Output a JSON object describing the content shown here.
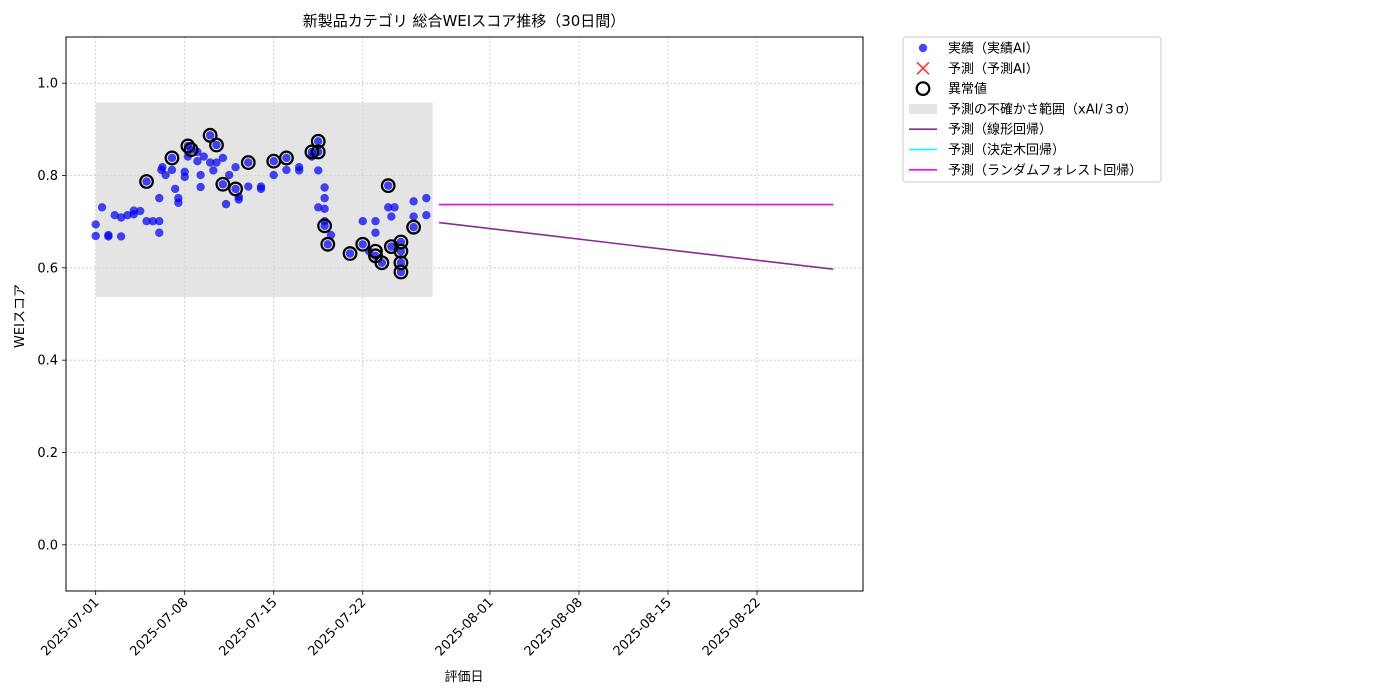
{
  "chart_data": {
    "type": "scatter",
    "title": "新製品カテゴリ 総合WEIスコア推移（30日間）",
    "xlabel": "評価日",
    "ylabel": "WEIスコア",
    "xlim": [
      "2025-06-28 16:00",
      "2025-08-30 08:00"
    ],
    "ylim": [
      -0.1,
      1.1
    ],
    "yticks": [
      0.0,
      0.2,
      0.4,
      0.6,
      0.8,
      1.0
    ],
    "xticks": [
      "2025-07-01",
      "2025-07-08",
      "2025-07-15",
      "2025-07-22",
      "2025-08-01",
      "2025-08-08",
      "2025-08-15",
      "2025-08-22"
    ],
    "grid": true,
    "legend_position": "outside-upper-right",
    "colors": {
      "actual": "#0000ee",
      "predicted": "#ff3333",
      "anomaly": "#000000",
      "uncertainty": "#d9d9d9",
      "linear": "#8b2a96",
      "tree": "#00ffff",
      "forest": "#ff00ff"
    },
    "series": [
      {
        "name": "実績（実績AI）",
        "kind": "scatter",
        "points": [
          [
            "2025-07-01 00:00",
            0.669
          ],
          [
            "2025-07-01 00:00",
            0.694
          ],
          [
            "2025-07-01 12:00",
            0.731
          ],
          [
            "2025-07-02 00:00",
            0.671
          ],
          [
            "2025-07-02 00:00",
            0.668
          ],
          [
            "2025-07-02 12:00",
            0.714
          ],
          [
            "2025-07-03 00:00",
            0.709
          ],
          [
            "2025-07-03 00:00",
            0.668
          ],
          [
            "2025-07-03 12:00",
            0.714
          ],
          [
            "2025-07-04 00:00",
            0.724
          ],
          [
            "2025-07-04 00:00",
            0.716
          ],
          [
            "2025-07-04 12:00",
            0.723
          ],
          [
            "2025-07-05 00:00",
            0.701
          ],
          [
            "2025-07-05 00:00",
            0.787
          ],
          [
            "2025-07-05 12:00",
            0.701
          ],
          [
            "2025-07-06 00:00",
            0.701
          ],
          [
            "2025-07-06 00:00",
            0.676
          ],
          [
            "2025-07-06 12:00",
            0.801
          ],
          [
            "2025-07-06 04:00",
            0.812
          ],
          [
            "2025-07-06 06:00",
            0.818
          ],
          [
            "2025-07-06 00:00",
            0.751
          ],
          [
            "2025-07-07 00:00",
            0.812
          ],
          [
            "2025-07-07 00:00",
            0.838
          ],
          [
            "2025-07-07 06:00",
            0.771
          ],
          [
            "2025-07-07 12:00",
            0.751
          ],
          [
            "2025-07-07 12:00",
            0.741
          ],
          [
            "2025-07-08 00:00",
            0.808
          ],
          [
            "2025-07-08 00:00",
            0.797
          ],
          [
            "2025-07-08 06:00",
            0.864
          ],
          [
            "2025-07-08 06:00",
            0.841
          ],
          [
            "2025-07-08 12:00",
            0.856
          ],
          [
            "2025-07-09 00:00",
            0.851
          ],
          [
            "2025-07-09 00:00",
            0.831
          ],
          [
            "2025-07-09 06:00",
            0.775
          ],
          [
            "2025-07-09 06:00",
            0.801
          ],
          [
            "2025-07-09 12:00",
            0.841
          ],
          [
            "2025-07-10 00:00",
            0.887
          ],
          [
            "2025-07-10 00:00",
            0.828
          ],
          [
            "2025-07-10 06:00",
            0.811
          ],
          [
            "2025-07-10 12:00",
            0.866
          ],
          [
            "2025-07-10 12:00",
            0.828
          ],
          [
            "2025-07-11 00:00",
            0.838
          ],
          [
            "2025-07-11 00:00",
            0.781
          ],
          [
            "2025-07-11 06:00",
            0.738
          ],
          [
            "2025-07-11 12:00",
            0.801
          ],
          [
            "2025-07-12 00:00",
            0.771
          ],
          [
            "2025-07-12 00:00",
            0.818
          ],
          [
            "2025-07-12 06:00",
            0.748
          ],
          [
            "2025-07-12 06:00",
            0.754
          ],
          [
            "2025-07-13 00:00",
            0.828
          ],
          [
            "2025-07-13 00:00",
            0.776
          ],
          [
            "2025-07-14 00:00",
            0.771
          ],
          [
            "2025-07-14 00:00",
            0.776
          ],
          [
            "2025-07-15 00:00",
            0.831
          ],
          [
            "2025-07-15 00:00",
            0.801
          ],
          [
            "2025-07-16 00:00",
            0.838
          ],
          [
            "2025-07-16 00:00",
            0.812
          ],
          [
            "2025-07-17 00:00",
            0.818
          ],
          [
            "2025-07-17 00:00",
            0.811
          ],
          [
            "2025-07-18 00:00",
            0.851
          ],
          [
            "2025-07-18 00:00",
            0.841
          ],
          [
            "2025-07-18 12:00",
            0.874
          ],
          [
            "2025-07-18 12:00",
            0.851
          ],
          [
            "2025-07-18 12:00",
            0.811
          ],
          [
            "2025-07-18 12:00",
            0.731
          ],
          [
            "2025-07-19 00:00",
            0.774
          ],
          [
            "2025-07-19 00:00",
            0.751
          ],
          [
            "2025-07-19 00:00",
            0.728
          ],
          [
            "2025-07-19 00:00",
            0.701
          ],
          [
            "2025-07-19 00:00",
            0.691
          ],
          [
            "2025-07-19 06:00",
            0.651
          ],
          [
            "2025-07-19 12:00",
            0.671
          ],
          [
            "2025-07-21 00:00",
            0.631
          ],
          [
            "2025-07-22 00:00",
            0.651
          ],
          [
            "2025-07-22 00:00",
            0.701
          ],
          [
            "2025-07-22 12:00",
            0.636
          ],
          [
            "2025-07-23 00:00",
            0.701
          ],
          [
            "2025-07-23 00:00",
            0.676
          ],
          [
            "2025-07-23 00:00",
            0.626
          ],
          [
            "2025-07-23 12:00",
            0.611
          ],
          [
            "2025-07-24 00:00",
            0.778
          ],
          [
            "2025-07-24 00:00",
            0.731
          ],
          [
            "2025-07-24 06:00",
            0.711
          ],
          [
            "2025-07-24 06:00",
            0.646
          ],
          [
            "2025-07-24 12:00",
            0.731
          ],
          [
            "2025-07-25 00:00",
            0.656
          ],
          [
            "2025-07-25 00:00",
            0.636
          ],
          [
            "2025-07-25 00:00",
            0.611
          ],
          [
            "2025-07-25 00:00",
            0.591
          ],
          [
            "2025-07-26 00:00",
            0.688
          ],
          [
            "2025-07-26 00:00",
            0.711
          ],
          [
            "2025-07-26 00:00",
            0.744
          ],
          [
            "2025-07-27 00:00",
            0.751
          ],
          [
            "2025-07-27 00:00",
            0.714
          ]
        ]
      },
      {
        "name": "予測（予測AI）",
        "kind": "scatter-x",
        "points": []
      },
      {
        "name": "異常値",
        "kind": "ring",
        "points": [
          [
            "2025-07-05 00:00",
            0.787
          ],
          [
            "2025-07-07 00:00",
            0.838
          ],
          [
            "2025-07-08 06:00",
            0.864
          ],
          [
            "2025-07-08 12:00",
            0.856
          ],
          [
            "2025-07-10 00:00",
            0.887
          ],
          [
            "2025-07-10 12:00",
            0.866
          ],
          [
            "2025-07-11 00:00",
            0.781
          ],
          [
            "2025-07-12 00:00",
            0.771
          ],
          [
            "2025-07-13 00:00",
            0.828
          ],
          [
            "2025-07-15 00:00",
            0.831
          ],
          [
            "2025-07-16 00:00",
            0.838
          ],
          [
            "2025-07-18 00:00",
            0.851
          ],
          [
            "2025-07-18 12:00",
            0.874
          ],
          [
            "2025-07-18 12:00",
            0.851
          ],
          [
            "2025-07-19 00:00",
            0.691
          ],
          [
            "2025-07-19 06:00",
            0.651
          ],
          [
            "2025-07-21 00:00",
            0.631
          ],
          [
            "2025-07-22 00:00",
            0.651
          ],
          [
            "2025-07-23 00:00",
            0.636
          ],
          [
            "2025-07-23 00:00",
            0.626
          ],
          [
            "2025-07-23 12:00",
            0.611
          ],
          [
            "2025-07-24 00:00",
            0.778
          ],
          [
            "2025-07-24 06:00",
            0.646
          ],
          [
            "2025-07-25 00:00",
            0.656
          ],
          [
            "2025-07-25 00:00",
            0.636
          ],
          [
            "2025-07-25 00:00",
            0.611
          ],
          [
            "2025-07-25 00:00",
            0.591
          ],
          [
            "2025-07-26 00:00",
            0.688
          ]
        ]
      },
      {
        "name": "予測の不確かさ範囲（xAI/３σ）",
        "kind": "band",
        "x_range": [
          "2025-07-01 00:00",
          "2025-07-27 12:00"
        ],
        "y_range": [
          0.537,
          0.958
        ]
      },
      {
        "name": "予測（線形回帰）",
        "kind": "line",
        "points": [
          [
            "2025-07-28 00:00",
            0.698
          ],
          [
            "2025-08-28 00:00",
            0.597
          ]
        ]
      },
      {
        "name": "予測（決定木回帰）",
        "kind": "line",
        "points": [
          [
            "2025-07-28 00:00",
            0.737
          ],
          [
            "2025-08-28 00:00",
            0.737
          ]
        ]
      },
      {
        "name": "予測（ランダムフォレスト回帰）",
        "kind": "line",
        "points": [
          [
            "2025-07-28 00:00",
            0.737
          ],
          [
            "2025-08-28 00:00",
            0.737
          ]
        ]
      }
    ]
  }
}
